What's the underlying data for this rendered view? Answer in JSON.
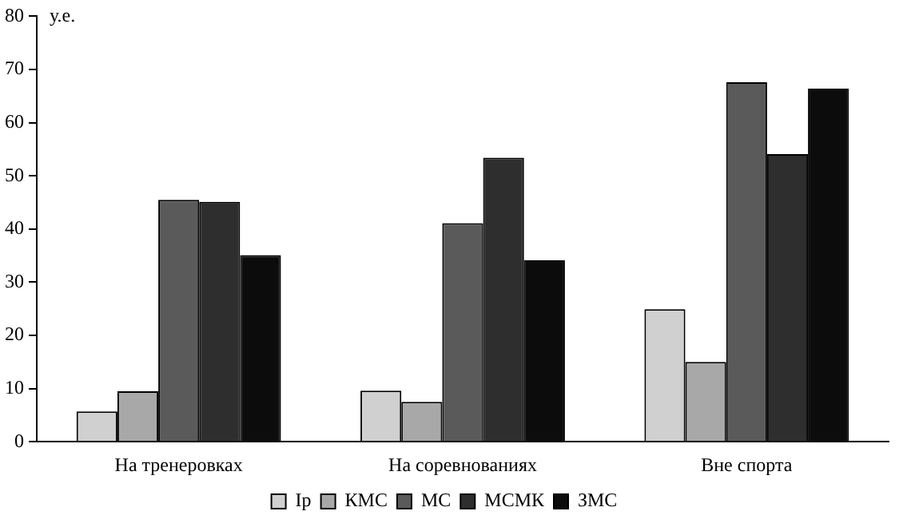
{
  "chart_data": {
    "type": "bar",
    "ylabel": "у.е.",
    "categories": [
      "На тренеровках",
      "На соревнованиях",
      "Вне спорта"
    ],
    "series": [
      {
        "name": "Iр",
        "color": "#d0d0d0",
        "values": [
          5.7,
          9.6,
          24.9
        ]
      },
      {
        "name": "КМС",
        "color": "#a8a8a8",
        "values": [
          9.5,
          7.5,
          15.0
        ]
      },
      {
        "name": "МС",
        "color": "#5a5a5a",
        "values": [
          45.5,
          41.1,
          67.6
        ]
      },
      {
        "name": "МСМК",
        "color": "#2e2e2e",
        "values": [
          45.1,
          53.4,
          54.1
        ]
      },
      {
        "name": "ЗМС",
        "color": "#0c0c0c",
        "values": [
          35.1,
          34.1,
          66.4
        ]
      }
    ],
    "ylim": [
      0,
      80
    ],
    "yticks": [
      0,
      10,
      20,
      30,
      40,
      50,
      60,
      70,
      80
    ],
    "grid": false,
    "legend": "bottom"
  }
}
